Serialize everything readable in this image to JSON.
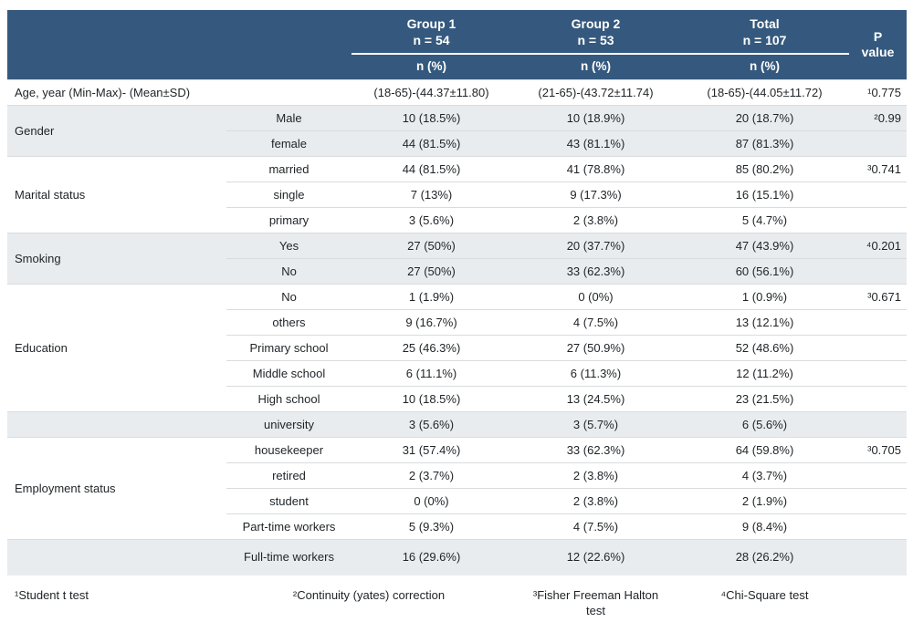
{
  "table": {
    "header": {
      "groups": [
        {
          "title": "Group 1",
          "n": "n = 54",
          "sub": "n (%)"
        },
        {
          "title": "Group 2",
          "n": "n = 53",
          "sub": "n (%)"
        },
        {
          "title": "Total",
          "n": "n = 107",
          "sub": "n (%)"
        }
      ],
      "p_label": "P value"
    },
    "rows": [
      {
        "cat": "Age, year (Min-Max)- (Mean±SD)",
        "catspan": 2,
        "rowspan": 1,
        "vals": [
          "(18-65)-(44.37±11.80)",
          "(21-65)-(43.72±11.74)",
          "(18-65)-(44.05±11.72)"
        ],
        "p": "¹0.775",
        "band": "white"
      },
      {
        "cat": "Gender",
        "rowspan": 2,
        "sub": "Male",
        "vals": [
          "10 (18.5%)",
          "10 (18.9%)",
          "20 (18.7%)"
        ],
        "p": "²0.99",
        "band": "gray"
      },
      {
        "sub": "female",
        "vals": [
          "44 (81.5%)",
          "43 (81.1%)",
          "87 (81.3%)"
        ],
        "p": "",
        "band": "gray"
      },
      {
        "cat": "Marital status",
        "rowspan": 3,
        "sub": "married",
        "vals": [
          "44 (81.5%)",
          "41 (78.8%)",
          "85 (80.2%)"
        ],
        "p": "³0.741",
        "band": "white"
      },
      {
        "sub": "single",
        "vals": [
          "7 (13%)",
          "9 (17.3%)",
          "16 (15.1%)"
        ],
        "p": "",
        "band": "white"
      },
      {
        "sub": "primary",
        "vals": [
          "3 (5.6%)",
          "2 (3.8%)",
          "5 (4.7%)"
        ],
        "p": "",
        "band": "white"
      },
      {
        "cat": "Smoking",
        "rowspan": 2,
        "sub": "Yes",
        "vals": [
          "27 (50%)",
          "20 (37.7%)",
          "47 (43.9%)"
        ],
        "p": "⁴0.201",
        "band": "gray"
      },
      {
        "sub": "No",
        "vals": [
          "27 (50%)",
          "33 (62.3%)",
          "60 (56.1%)"
        ],
        "p": "",
        "band": "gray"
      },
      {
        "cat": "Education",
        "rowspan": 5,
        "sub": "No",
        "vals": [
          "1 (1.9%)",
          "0 (0%)",
          "1 (0.9%)"
        ],
        "p": "³0.671",
        "band": "white"
      },
      {
        "sub": "others",
        "vals": [
          "9 (16.7%)",
          "4 (7.5%)",
          "13 (12.1%)"
        ],
        "p": "",
        "band": "white"
      },
      {
        "sub": "Primary school",
        "vals": [
          "25 (46.3%)",
          "27 (50.9%)",
          "52 (48.6%)"
        ],
        "p": "",
        "band": "white"
      },
      {
        "sub": "Middle school",
        "vals": [
          "6 (11.1%)",
          "6 (11.3%)",
          "12 (11.2%)"
        ],
        "p": "",
        "band": "white"
      },
      {
        "sub": "High school",
        "vals": [
          "10 (18.5%)",
          "13 (24.5%)",
          "23 (21.5%)"
        ],
        "p": "",
        "band": "white"
      },
      {
        "cat": "",
        "rowspan": 1,
        "sub": "university",
        "vals": [
          "3 (5.6%)",
          "3 (5.7%)",
          "6 (5.6%)"
        ],
        "p": "",
        "band": "gray"
      },
      {
        "cat": "Employment status",
        "rowspan": 4,
        "sub": "housekeeper",
        "vals": [
          "31 (57.4%)",
          "33 (62.3%)",
          "64 (59.8%)"
        ],
        "p": "³0.705",
        "band": "white"
      },
      {
        "sub": "retired",
        "vals": [
          "2 (3.7%)",
          "2 (3.8%)",
          "4 (3.7%)"
        ],
        "p": "",
        "band": "white"
      },
      {
        "sub": "student",
        "vals": [
          "0 (0%)",
          "2 (3.8%)",
          "2 (1.9%)"
        ],
        "p": "",
        "band": "white"
      },
      {
        "sub": "Part-time workers",
        "vals": [
          "5 (9.3%)",
          "4 (7.5%)",
          "9 (8.4%)"
        ],
        "p": "",
        "band": "white"
      },
      {
        "cat": "",
        "rowspan": 1,
        "sub": "Full-time workers",
        "vals": [
          "16 (29.6%)",
          "12 (22.6%)",
          "28 (26.2%)"
        ],
        "p": "",
        "band": "gray",
        "tall": true
      }
    ]
  },
  "footnotes": [
    "¹Student t test",
    "²Continuity (yates) correction",
    "³Fisher Freeman Halton test",
    "⁴Chi-Square test"
  ],
  "colors": {
    "header_bg": "#35597E",
    "header_text": "#FFFFFF",
    "stripe_gray": "#E9ECEF",
    "divider": "#D9DCDE",
    "body_text": "#1F2326"
  }
}
